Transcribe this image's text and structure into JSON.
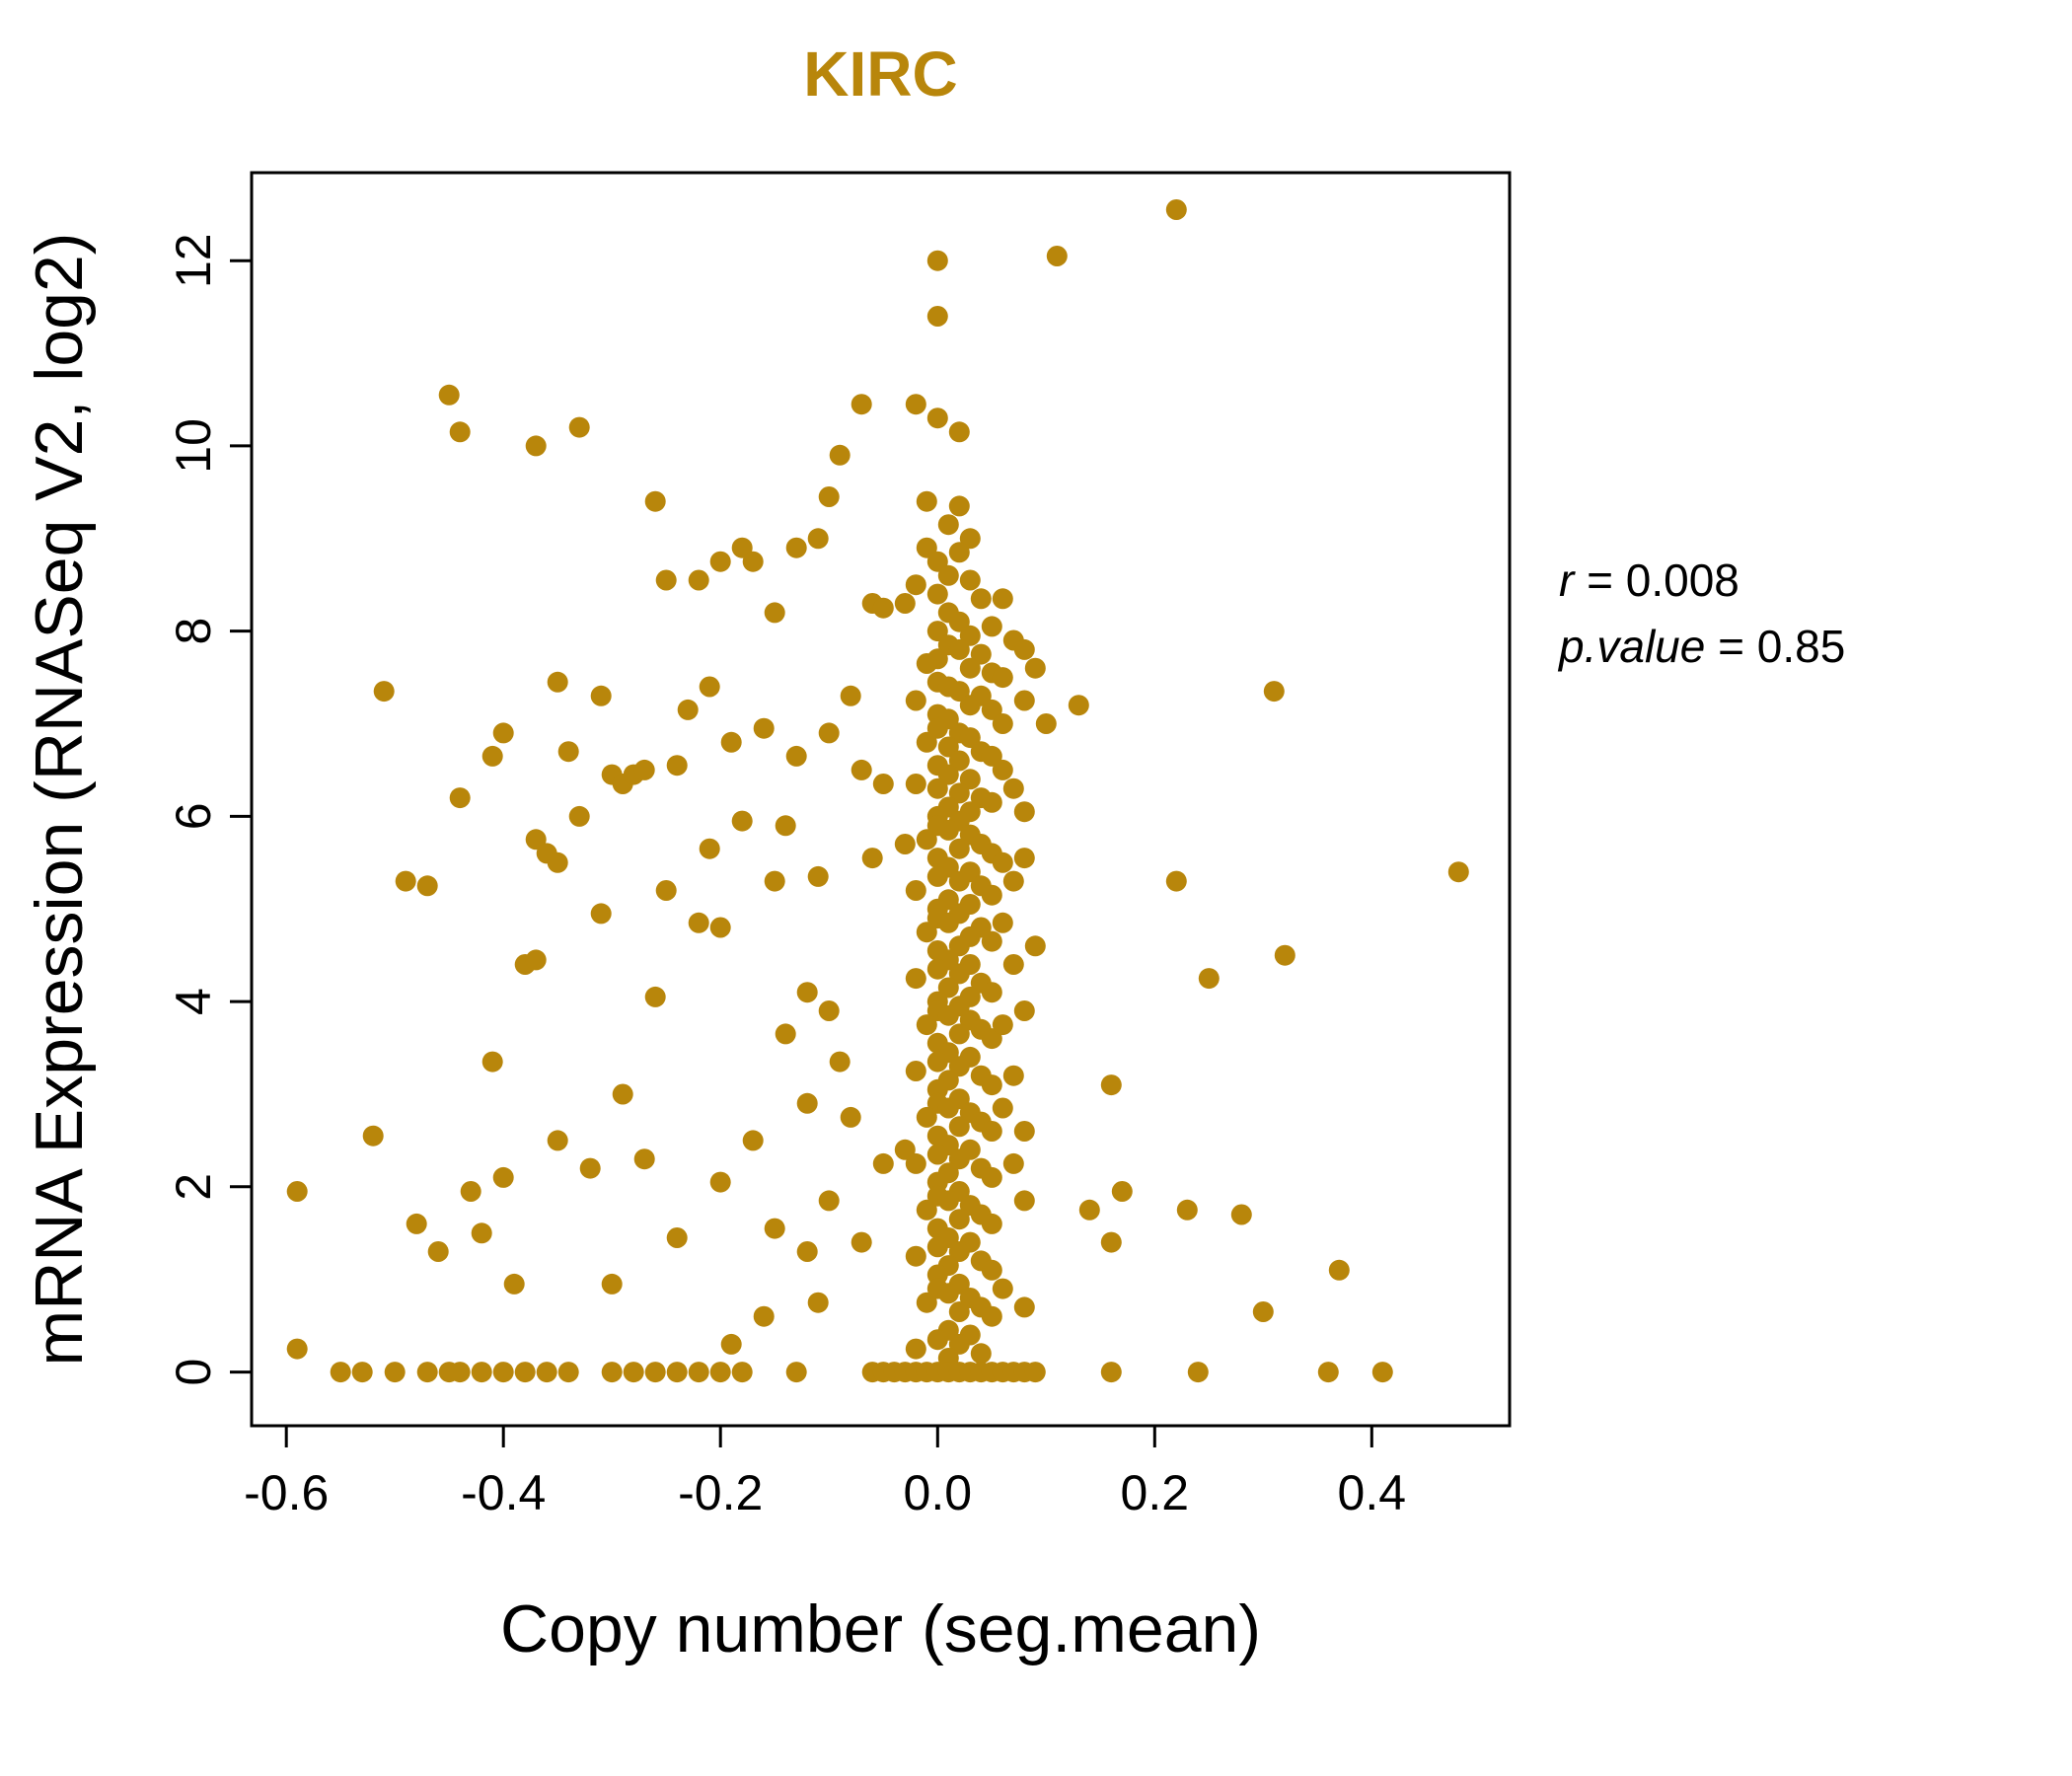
{
  "title": "KIRC",
  "annotation": {
    "r_var": "r",
    "r_val": " = 0.008",
    "p_var": "p.value",
    "p_val": " = 0.85"
  },
  "chart_data": {
    "type": "scatter",
    "title": "KIRC",
    "xlabel": "Copy number (seg.mean)",
    "ylabel": "mRNA Expression (RNASeq V2, log2)",
    "xlim": [
      -0.632,
      0.527
    ],
    "ylim": [
      -0.58,
      12.95
    ],
    "x_ticks": [
      -0.6,
      -0.4,
      -0.2,
      0.0,
      0.2,
      0.4
    ],
    "x_tick_labels": [
      "-0.6",
      "-0.4",
      "-0.2",
      "0.0",
      "0.2",
      "0.4"
    ],
    "y_ticks": [
      0,
      2,
      4,
      6,
      8,
      10,
      12
    ],
    "y_tick_labels": [
      "0",
      "2",
      "4",
      "6",
      "8",
      "10",
      "12"
    ],
    "grid": false,
    "legend": false,
    "point_color": "#B8860B",
    "point_radius": 10.5,
    "annotations": [
      "r = 0.008",
      "p.value = 0.85"
    ],
    "points": [
      [
        -0.59,
        0.25
      ],
      [
        -0.59,
        1.95
      ],
      [
        -0.55,
        0
      ],
      [
        -0.53,
        0
      ],
      [
        -0.52,
        2.55
      ],
      [
        -0.51,
        7.35
      ],
      [
        -0.5,
        0
      ],
      [
        -0.49,
        5.3
      ],
      [
        -0.48,
        1.6
      ],
      [
        -0.47,
        0
      ],
      [
        -0.47,
        5.25
      ],
      [
        -0.46,
        1.3
      ],
      [
        -0.45,
        10.55
      ],
      [
        -0.45,
        0
      ],
      [
        -0.44,
        10.15
      ],
      [
        -0.44,
        6.2
      ],
      [
        -0.44,
        0
      ],
      [
        -0.43,
        1.95
      ],
      [
        -0.42,
        1.5
      ],
      [
        -0.42,
        0
      ],
      [
        -0.41,
        6.65
      ],
      [
        -0.41,
        3.35
      ],
      [
        -0.4,
        6.9
      ],
      [
        -0.4,
        2.1
      ],
      [
        -0.4,
        0
      ],
      [
        -0.39,
        0.95
      ],
      [
        -0.38,
        4.4
      ],
      [
        -0.38,
        0
      ],
      [
        -0.37,
        10.0
      ],
      [
        -0.37,
        5.75
      ],
      [
        -0.37,
        4.45
      ],
      [
        -0.36,
        5.6
      ],
      [
        -0.36,
        0
      ],
      [
        -0.35,
        7.45
      ],
      [
        -0.35,
        5.5
      ],
      [
        -0.35,
        2.5
      ],
      [
        -0.34,
        6.7
      ],
      [
        -0.34,
        0
      ],
      [
        -0.33,
        10.2
      ],
      [
        -0.33,
        6.0
      ],
      [
        -0.32,
        2.2
      ],
      [
        -0.31,
        7.3
      ],
      [
        -0.31,
        4.95
      ],
      [
        -0.3,
        6.45
      ],
      [
        -0.3,
        0.95
      ],
      [
        -0.3,
        0
      ],
      [
        -0.29,
        6.35
      ],
      [
        -0.29,
        3.0
      ],
      [
        -0.28,
        6.45
      ],
      [
        -0.28,
        0
      ],
      [
        -0.27,
        6.5
      ],
      [
        -0.27,
        2.3
      ],
      [
        -0.26,
        9.4
      ],
      [
        -0.26,
        4.05
      ],
      [
        -0.26,
        0
      ],
      [
        -0.25,
        8.55
      ],
      [
        -0.25,
        5.2
      ],
      [
        -0.24,
        6.55
      ],
      [
        -0.24,
        1.45
      ],
      [
        -0.24,
        0
      ],
      [
        -0.23,
        7.15
      ],
      [
        -0.22,
        8.55
      ],
      [
        -0.22,
        4.85
      ],
      [
        -0.22,
        0
      ],
      [
        -0.21,
        7.4
      ],
      [
        -0.21,
        5.65
      ],
      [
        -0.2,
        8.75
      ],
      [
        -0.2,
        4.8
      ],
      [
        -0.2,
        2.05
      ],
      [
        -0.2,
        0
      ],
      [
        -0.19,
        6.8
      ],
      [
        -0.19,
        0.3
      ],
      [
        -0.18,
        8.9
      ],
      [
        -0.18,
        5.95
      ],
      [
        -0.18,
        0
      ],
      [
        -0.17,
        8.75
      ],
      [
        -0.17,
        2.5
      ],
      [
        -0.16,
        6.95
      ],
      [
        -0.16,
        0.6
      ],
      [
        -0.15,
        8.2
      ],
      [
        -0.15,
        5.3
      ],
      [
        -0.15,
        1.55
      ],
      [
        -0.14,
        5.9
      ],
      [
        -0.14,
        3.65
      ],
      [
        -0.13,
        8.9
      ],
      [
        -0.13,
        6.65
      ],
      [
        -0.13,
        0
      ],
      [
        -0.12,
        4.1
      ],
      [
        -0.12,
        2.9
      ],
      [
        -0.12,
        1.3
      ],
      [
        -0.11,
        9.0
      ],
      [
        -0.11,
        5.35
      ],
      [
        -0.11,
        0.75
      ],
      [
        -0.1,
        9.45
      ],
      [
        -0.1,
        6.9
      ],
      [
        -0.1,
        3.9
      ],
      [
        -0.1,
        1.85
      ],
      [
        -0.09,
        9.9
      ],
      [
        -0.09,
        3.35
      ],
      [
        -0.08,
        7.3
      ],
      [
        -0.08,
        2.75
      ],
      [
        -0.07,
        10.45
      ],
      [
        -0.07,
        6.5
      ],
      [
        -0.07,
        1.4
      ],
      [
        -0.06,
        8.3
      ],
      [
        -0.06,
        5.55
      ],
      [
        -0.06,
        0
      ],
      [
        -0.05,
        8.25
      ],
      [
        -0.05,
        6.35
      ],
      [
        -0.05,
        2.25
      ],
      [
        -0.05,
        0
      ],
      [
        0,
        12.0
      ],
      [
        0,
        11.4
      ],
      [
        -0.02,
        10.45
      ],
      [
        0,
        10.3
      ],
      [
        0.02,
        10.15
      ],
      [
        -0.01,
        9.4
      ],
      [
        0.02,
        9.35
      ],
      [
        0.01,
        9.15
      ],
      [
        0.03,
        9.0
      ],
      [
        -0.01,
        8.9
      ],
      [
        0.02,
        8.85
      ],
      [
        0,
        8.75
      ],
      [
        0.01,
        8.6
      ],
      [
        0.03,
        8.55
      ],
      [
        -0.02,
        8.5
      ],
      [
        0,
        8.4
      ],
      [
        0.04,
        8.35
      ],
      [
        -0.03,
        8.3
      ],
      [
        0.01,
        8.2
      ],
      [
        0.02,
        8.1
      ],
      [
        0.05,
        8.05
      ],
      [
        0,
        8.0
      ],
      [
        0.03,
        7.95
      ],
      [
        0.06,
        8.35
      ],
      [
        0.07,
        7.9
      ],
      [
        0.01,
        7.85
      ],
      [
        0.02,
        7.8
      ],
      [
        0.04,
        7.75
      ],
      [
        0,
        7.7
      ],
      [
        -0.01,
        7.65
      ],
      [
        0.03,
        7.6
      ],
      [
        0.05,
        7.55
      ],
      [
        0.06,
        7.5
      ],
      [
        0.08,
        7.8
      ],
      [
        0.09,
        7.6
      ],
      [
        0,
        7.45
      ],
      [
        0.01,
        7.4
      ],
      [
        0.02,
        7.35
      ],
      [
        0.04,
        7.3
      ],
      [
        -0.02,
        7.25
      ],
      [
        0.03,
        7.2
      ],
      [
        0.05,
        7.15
      ],
      [
        0,
        7.1
      ],
      [
        0.01,
        7.05
      ],
      [
        0.06,
        7.0
      ],
      [
        0.08,
        7.25
      ],
      [
        0.1,
        7.0
      ],
      [
        0,
        6.95
      ],
      [
        0.02,
        6.9
      ],
      [
        0.03,
        6.85
      ],
      [
        -0.01,
        6.8
      ],
      [
        0.01,
        6.75
      ],
      [
        0.04,
        6.7
      ],
      [
        0.05,
        6.65
      ],
      [
        0.02,
        6.6
      ],
      [
        0,
        6.55
      ],
      [
        0.06,
        6.5
      ],
      [
        0.01,
        6.45
      ],
      [
        0.03,
        6.4
      ],
      [
        -0.02,
        6.35
      ],
      [
        0,
        6.3
      ],
      [
        0.02,
        6.25
      ],
      [
        0.04,
        6.2
      ],
      [
        0.05,
        6.15
      ],
      [
        0.01,
        6.1
      ],
      [
        0.03,
        6.05
      ],
      [
        0,
        6.0
      ],
      [
        0.07,
        6.3
      ],
      [
        0.08,
        6.05
      ],
      [
        0.02,
        5.95
      ],
      [
        0,
        5.9
      ],
      [
        0.01,
        5.85
      ],
      [
        0.03,
        5.8
      ],
      [
        -0.01,
        5.75
      ],
      [
        0.04,
        5.7
      ],
      [
        0.02,
        5.65
      ],
      [
        0.05,
        5.6
      ],
      [
        0,
        5.55
      ],
      [
        0.06,
        5.5
      ],
      [
        -0.03,
        5.7
      ],
      [
        0.08,
        5.55
      ],
      [
        0.01,
        5.45
      ],
      [
        0.03,
        5.4
      ],
      [
        0,
        5.35
      ],
      [
        0.02,
        5.3
      ],
      [
        0.04,
        5.25
      ],
      [
        -0.02,
        5.2
      ],
      [
        0.05,
        5.15
      ],
      [
        0.01,
        5.1
      ],
      [
        0.03,
        5.05
      ],
      [
        0,
        5.0
      ],
      [
        0.07,
        5.3
      ],
      [
        0.02,
        4.95
      ],
      [
        0,
        4.9
      ],
      [
        0.01,
        4.85
      ],
      [
        0.04,
        4.8
      ],
      [
        -0.01,
        4.75
      ],
      [
        0.03,
        4.7
      ],
      [
        0.05,
        4.65
      ],
      [
        0.02,
        4.6
      ],
      [
        0,
        4.55
      ],
      [
        0.06,
        4.85
      ],
      [
        0.09,
        4.6
      ],
      [
        0.01,
        4.45
      ],
      [
        0.03,
        4.4
      ],
      [
        0,
        4.35
      ],
      [
        0.02,
        4.3
      ],
      [
        -0.02,
        4.25
      ],
      [
        0.04,
        4.2
      ],
      [
        0.01,
        4.15
      ],
      [
        0.05,
        4.1
      ],
      [
        0.03,
        4.05
      ],
      [
        0,
        4.0
      ],
      [
        0.07,
        4.4
      ],
      [
        0.02,
        3.95
      ],
      [
        0,
        3.9
      ],
      [
        0.01,
        3.85
      ],
      [
        0.03,
        3.8
      ],
      [
        -0.01,
        3.75
      ],
      [
        0.04,
        3.7
      ],
      [
        0.02,
        3.65
      ],
      [
        0.05,
        3.6
      ],
      [
        0,
        3.55
      ],
      [
        0.06,
        3.75
      ],
      [
        0.08,
        3.9
      ],
      [
        0.01,
        3.45
      ],
      [
        0.03,
        3.4
      ],
      [
        0,
        3.35
      ],
      [
        0.02,
        3.3
      ],
      [
        -0.02,
        3.25
      ],
      [
        0.04,
        3.2
      ],
      [
        0.01,
        3.15
      ],
      [
        0.05,
        3.1
      ],
      [
        0,
        3.05
      ],
      [
        0.07,
        3.2
      ],
      [
        0.02,
        2.95
      ],
      [
        0,
        2.9
      ],
      [
        0.01,
        2.85
      ],
      [
        0.03,
        2.8
      ],
      [
        -0.01,
        2.75
      ],
      [
        0.04,
        2.7
      ],
      [
        0.02,
        2.65
      ],
      [
        0.05,
        2.6
      ],
      [
        0,
        2.55
      ],
      [
        0.06,
        2.85
      ],
      [
        0.08,
        2.6
      ],
      [
        0.01,
        2.45
      ],
      [
        0.03,
        2.4
      ],
      [
        0,
        2.35
      ],
      [
        0.02,
        2.3
      ],
      [
        -0.02,
        2.25
      ],
      [
        0.04,
        2.2
      ],
      [
        0.01,
        2.15
      ],
      [
        0.05,
        2.1
      ],
      [
        0,
        2.05
      ],
      [
        -0.03,
        2.4
      ],
      [
        0.07,
        2.25
      ],
      [
        0.02,
        1.95
      ],
      [
        0,
        1.9
      ],
      [
        0.01,
        1.85
      ],
      [
        0.03,
        1.8
      ],
      [
        -0.01,
        1.75
      ],
      [
        0.04,
        1.7
      ],
      [
        0.02,
        1.65
      ],
      [
        0.05,
        1.6
      ],
      [
        0,
        1.55
      ],
      [
        0.08,
        1.85
      ],
      [
        0.01,
        1.45
      ],
      [
        0.03,
        1.4
      ],
      [
        0,
        1.35
      ],
      [
        0.02,
        1.3
      ],
      [
        -0.02,
        1.25
      ],
      [
        0.04,
        1.2
      ],
      [
        0.01,
        1.15
      ],
      [
        0.05,
        1.1
      ],
      [
        0,
        1.05
      ],
      [
        0.02,
        0.95
      ],
      [
        0,
        0.9
      ],
      [
        0.01,
        0.85
      ],
      [
        0.03,
        0.8
      ],
      [
        -0.01,
        0.75
      ],
      [
        0.04,
        0.7
      ],
      [
        0.02,
        0.65
      ],
      [
        0.05,
        0.6
      ],
      [
        0.06,
        0.9
      ],
      [
        0.08,
        0.7
      ],
      [
        0.01,
        0.45
      ],
      [
        0.03,
        0.4
      ],
      [
        0,
        0.35
      ],
      [
        0.02,
        0.3
      ],
      [
        -0.02,
        0.25
      ],
      [
        0.04,
        0.2
      ],
      [
        0.01,
        0.15
      ],
      [
        -0.04,
        0
      ],
      [
        -0.03,
        0
      ],
      [
        -0.02,
        0
      ],
      [
        -0.01,
        0
      ],
      [
        0,
        0
      ],
      [
        0.01,
        0
      ],
      [
        0.02,
        0
      ],
      [
        0.03,
        0
      ],
      [
        0.04,
        0
      ],
      [
        0.05,
        0
      ],
      [
        0.06,
        0
      ],
      [
        0.07,
        0
      ],
      [
        0.08,
        0
      ],
      [
        0.09,
        0
      ],
      [
        0.11,
        12.05
      ],
      [
        0.22,
        12.55
      ],
      [
        0.13,
        7.2
      ],
      [
        0.31,
        7.35
      ],
      [
        0.22,
        5.3
      ],
      [
        0.48,
        5.4
      ],
      [
        0.25,
        4.25
      ],
      [
        0.32,
        4.5
      ],
      [
        0.16,
        3.1
      ],
      [
        0.17,
        1.95
      ],
      [
        0.14,
        1.75
      ],
      [
        0.23,
        1.75
      ],
      [
        0.28,
        1.7
      ],
      [
        0.16,
        1.4
      ],
      [
        0.37,
        1.1
      ],
      [
        0.3,
        0.65
      ],
      [
        0.16,
        0
      ],
      [
        0.24,
        0
      ],
      [
        0.36,
        0
      ],
      [
        0.41,
        0
      ]
    ]
  }
}
